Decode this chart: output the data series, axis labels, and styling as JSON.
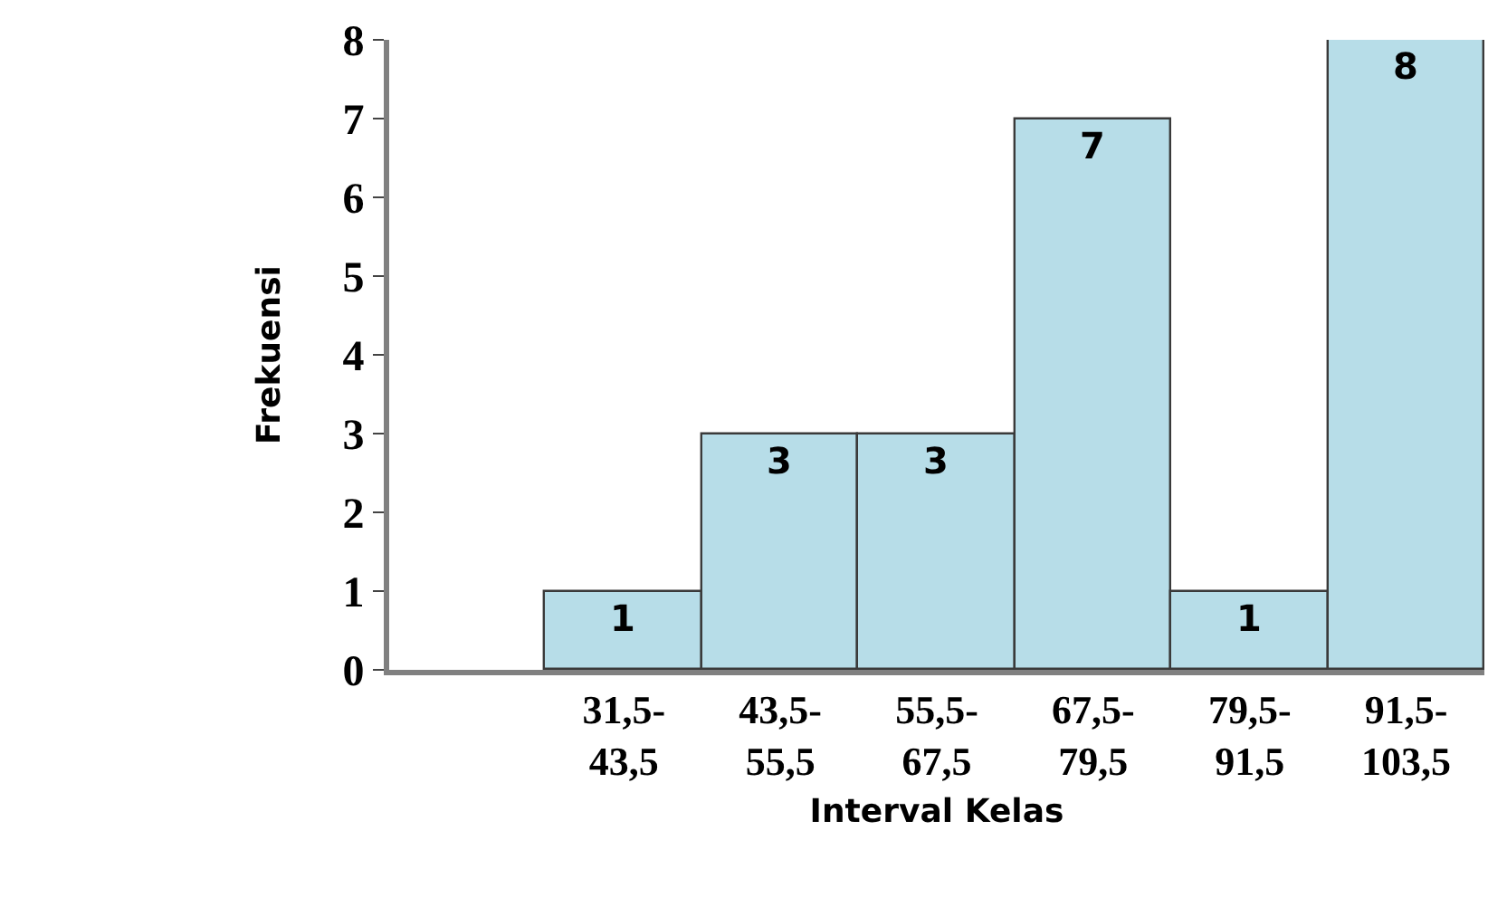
{
  "chart_data": {
    "type": "bar",
    "xlabel": "Interval Kelas",
    "ylabel": "Frekuensi",
    "categories": [
      null,
      "31,5-\n43,5",
      "43,5-\n55,5",
      "55,5-\n67,5",
      "67,5-\n79,5",
      "79,5-\n91,5",
      "91,5-\n103,5"
    ],
    "values": [
      null,
      1,
      3,
      3,
      7,
      1,
      8
    ],
    "color": "#b7dde8",
    "ylim": [
      0,
      8
    ],
    "yticks": [
      0,
      1,
      2,
      3,
      4,
      5,
      6,
      7,
      8
    ],
    "legend": false,
    "data_labels": true
  }
}
